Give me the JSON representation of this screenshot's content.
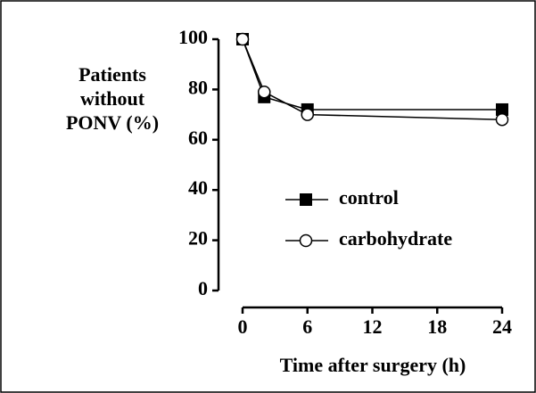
{
  "chart_data": {
    "type": "line",
    "ylabel": [
      "Patients",
      "without",
      "PONV (%)"
    ],
    "xlabel": "Time after surgery (h)",
    "x": [
      0,
      2,
      6,
      24
    ],
    "series": [
      {
        "name": "control",
        "color": "#000000",
        "marker": "filled-square",
        "values": [
          100,
          77,
          72,
          72
        ]
      },
      {
        "name": "carbohydrate",
        "color": "#000000",
        "marker": "open-circle",
        "values": [
          100,
          79,
          70,
          68
        ]
      }
    ],
    "xlim": [
      0,
      24
    ],
    "xticks": [
      0,
      6,
      12,
      18,
      24
    ],
    "ylim": [
      0,
      100
    ],
    "yticks": [
      0,
      20,
      40,
      60,
      80,
      100
    ],
    "grid": false,
    "legend": "center"
  }
}
